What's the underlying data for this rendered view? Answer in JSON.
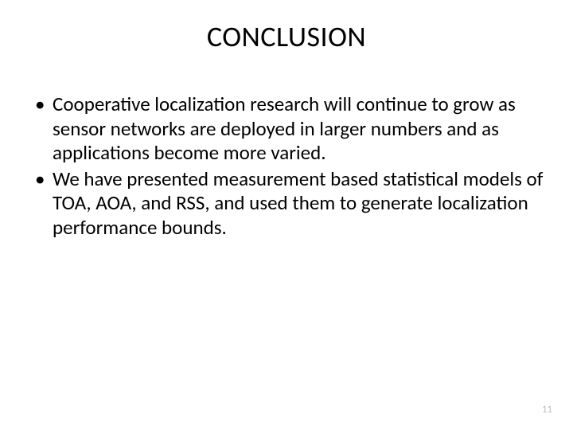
{
  "title": "CONCLUSION",
  "bullets": [
    "Cooperative localization research will continue to grow as sensor networks are deployed in larger numbers and as applications become more varied.",
    " We have presented measurement based statistical models of TOA, AOA, and RSS, and used them to generate localization performance bounds."
  ],
  "pageNumber": "11",
  "colors": {
    "background": "#ffffff",
    "text": "#000000",
    "pageNumber": "#bfbfbf"
  },
  "typography": {
    "titleFontSize": 36,
    "bodyFontSize": 25,
    "pageNumFontSize": 13,
    "fontFamily": "Calibri"
  }
}
